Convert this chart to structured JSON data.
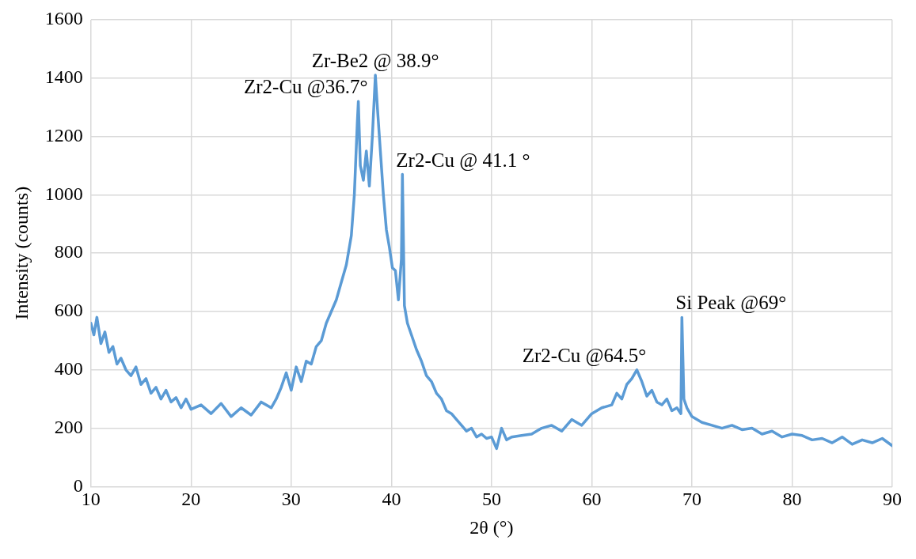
{
  "chart_data": {
    "type": "line",
    "xlabel": "2θ (°)",
    "ylabel": "Intensity (counts)",
    "xlim": [
      10,
      90
    ],
    "xticks": [
      10,
      20,
      30,
      40,
      50,
      60,
      70,
      80,
      90
    ],
    "ylim": [
      0,
      1600
    ],
    "yticks": [
      0,
      200,
      400,
      600,
      800,
      1000,
      1200,
      1400,
      1600
    ],
    "grid": true,
    "marker": "none",
    "line_style": "solid",
    "series": [
      {
        "color": "#5b9bd5",
        "x": [
          10,
          10.3,
          10.6,
          11,
          11.4,
          11.8,
          12.2,
          12.6,
          13,
          13.5,
          14,
          14.5,
          15,
          15.5,
          16,
          16.5,
          17,
          17.5,
          18,
          18.5,
          19,
          19.5,
          20,
          21,
          22,
          23,
          24,
          25,
          26,
          27,
          28,
          28.5,
          29,
          29.5,
          30,
          30.5,
          31,
          31.5,
          32,
          32.5,
          33,
          33.5,
          34,
          34.5,
          35,
          35.5,
          36,
          36.3,
          36.6,
          36.7,
          36.9,
          37.2,
          37.5,
          37.8,
          38.1,
          38.4,
          38.6,
          38.9,
          39.2,
          39.5,
          39.8,
          40.1,
          40.4,
          40.7,
          41,
          41.1,
          41.3,
          41.6,
          42,
          42.5,
          43,
          43.5,
          44,
          44.5,
          45,
          45.5,
          46,
          46.5,
          47,
          47.5,
          48,
          48.5,
          49,
          49.5,
          50,
          50.5,
          51,
          51.5,
          52,
          53,
          54,
          55,
          56,
          57,
          58,
          59,
          60,
          61,
          62,
          62.5,
          63,
          63.5,
          64,
          64.5,
          65,
          65.5,
          66,
          66.5,
          67,
          67.5,
          68,
          68.5,
          68.9,
          69,
          69.2,
          69.5,
          70,
          71,
          72,
          73,
          74,
          75,
          76,
          77,
          78,
          79,
          80,
          81,
          82,
          83,
          84,
          85,
          86,
          87,
          88,
          89,
          90
        ],
        "values": [
          560,
          520,
          580,
          490,
          530,
          460,
          480,
          420,
          440,
          400,
          380,
          410,
          350,
          370,
          320,
          340,
          300,
          330,
          290,
          305,
          270,
          300,
          265,
          280,
          250,
          285,
          240,
          270,
          245,
          290,
          270,
          300,
          340,
          390,
          330,
          410,
          360,
          430,
          420,
          480,
          500,
          560,
          600,
          640,
          700,
          760,
          860,
          1000,
          1250,
          1320,
          1100,
          1050,
          1150,
          1030,
          1200,
          1410,
          1300,
          1150,
          1000,
          880,
          820,
          750,
          740,
          640,
          780,
          1070,
          620,
          560,
          520,
          470,
          430,
          380,
          360,
          320,
          300,
          260,
          250,
          230,
          210,
          190,
          200,
          170,
          180,
          165,
          170,
          130,
          200,
          160,
          170,
          175,
          180,
          200,
          210,
          190,
          230,
          210,
          250,
          270,
          280,
          320,
          300,
          350,
          370,
          400,
          360,
          310,
          330,
          290,
          280,
          300,
          260,
          270,
          250,
          580,
          300,
          270,
          240,
          220,
          210,
          200,
          210,
          195,
          200,
          180,
          190,
          170,
          180,
          175,
          160,
          165,
          150,
          170,
          145,
          160,
          150,
          165,
          140
        ]
      }
    ],
    "annotations": [
      {
        "text": "Zr2-Cu @36.7°",
        "x": 36.7,
        "y": 1320
      },
      {
        "text": "Zr-Be2 @ 38.9°",
        "x": 38.4,
        "y": 1410
      },
      {
        "text": "Zr2-Cu @ 41.1 °",
        "x": 41.1,
        "y": 1070
      },
      {
        "text": "Zr2-Cu @64.5°",
        "x": 64.5,
        "y": 400
      },
      {
        "text": "Si Peak @69°",
        "x": 69,
        "y": 580
      }
    ]
  }
}
